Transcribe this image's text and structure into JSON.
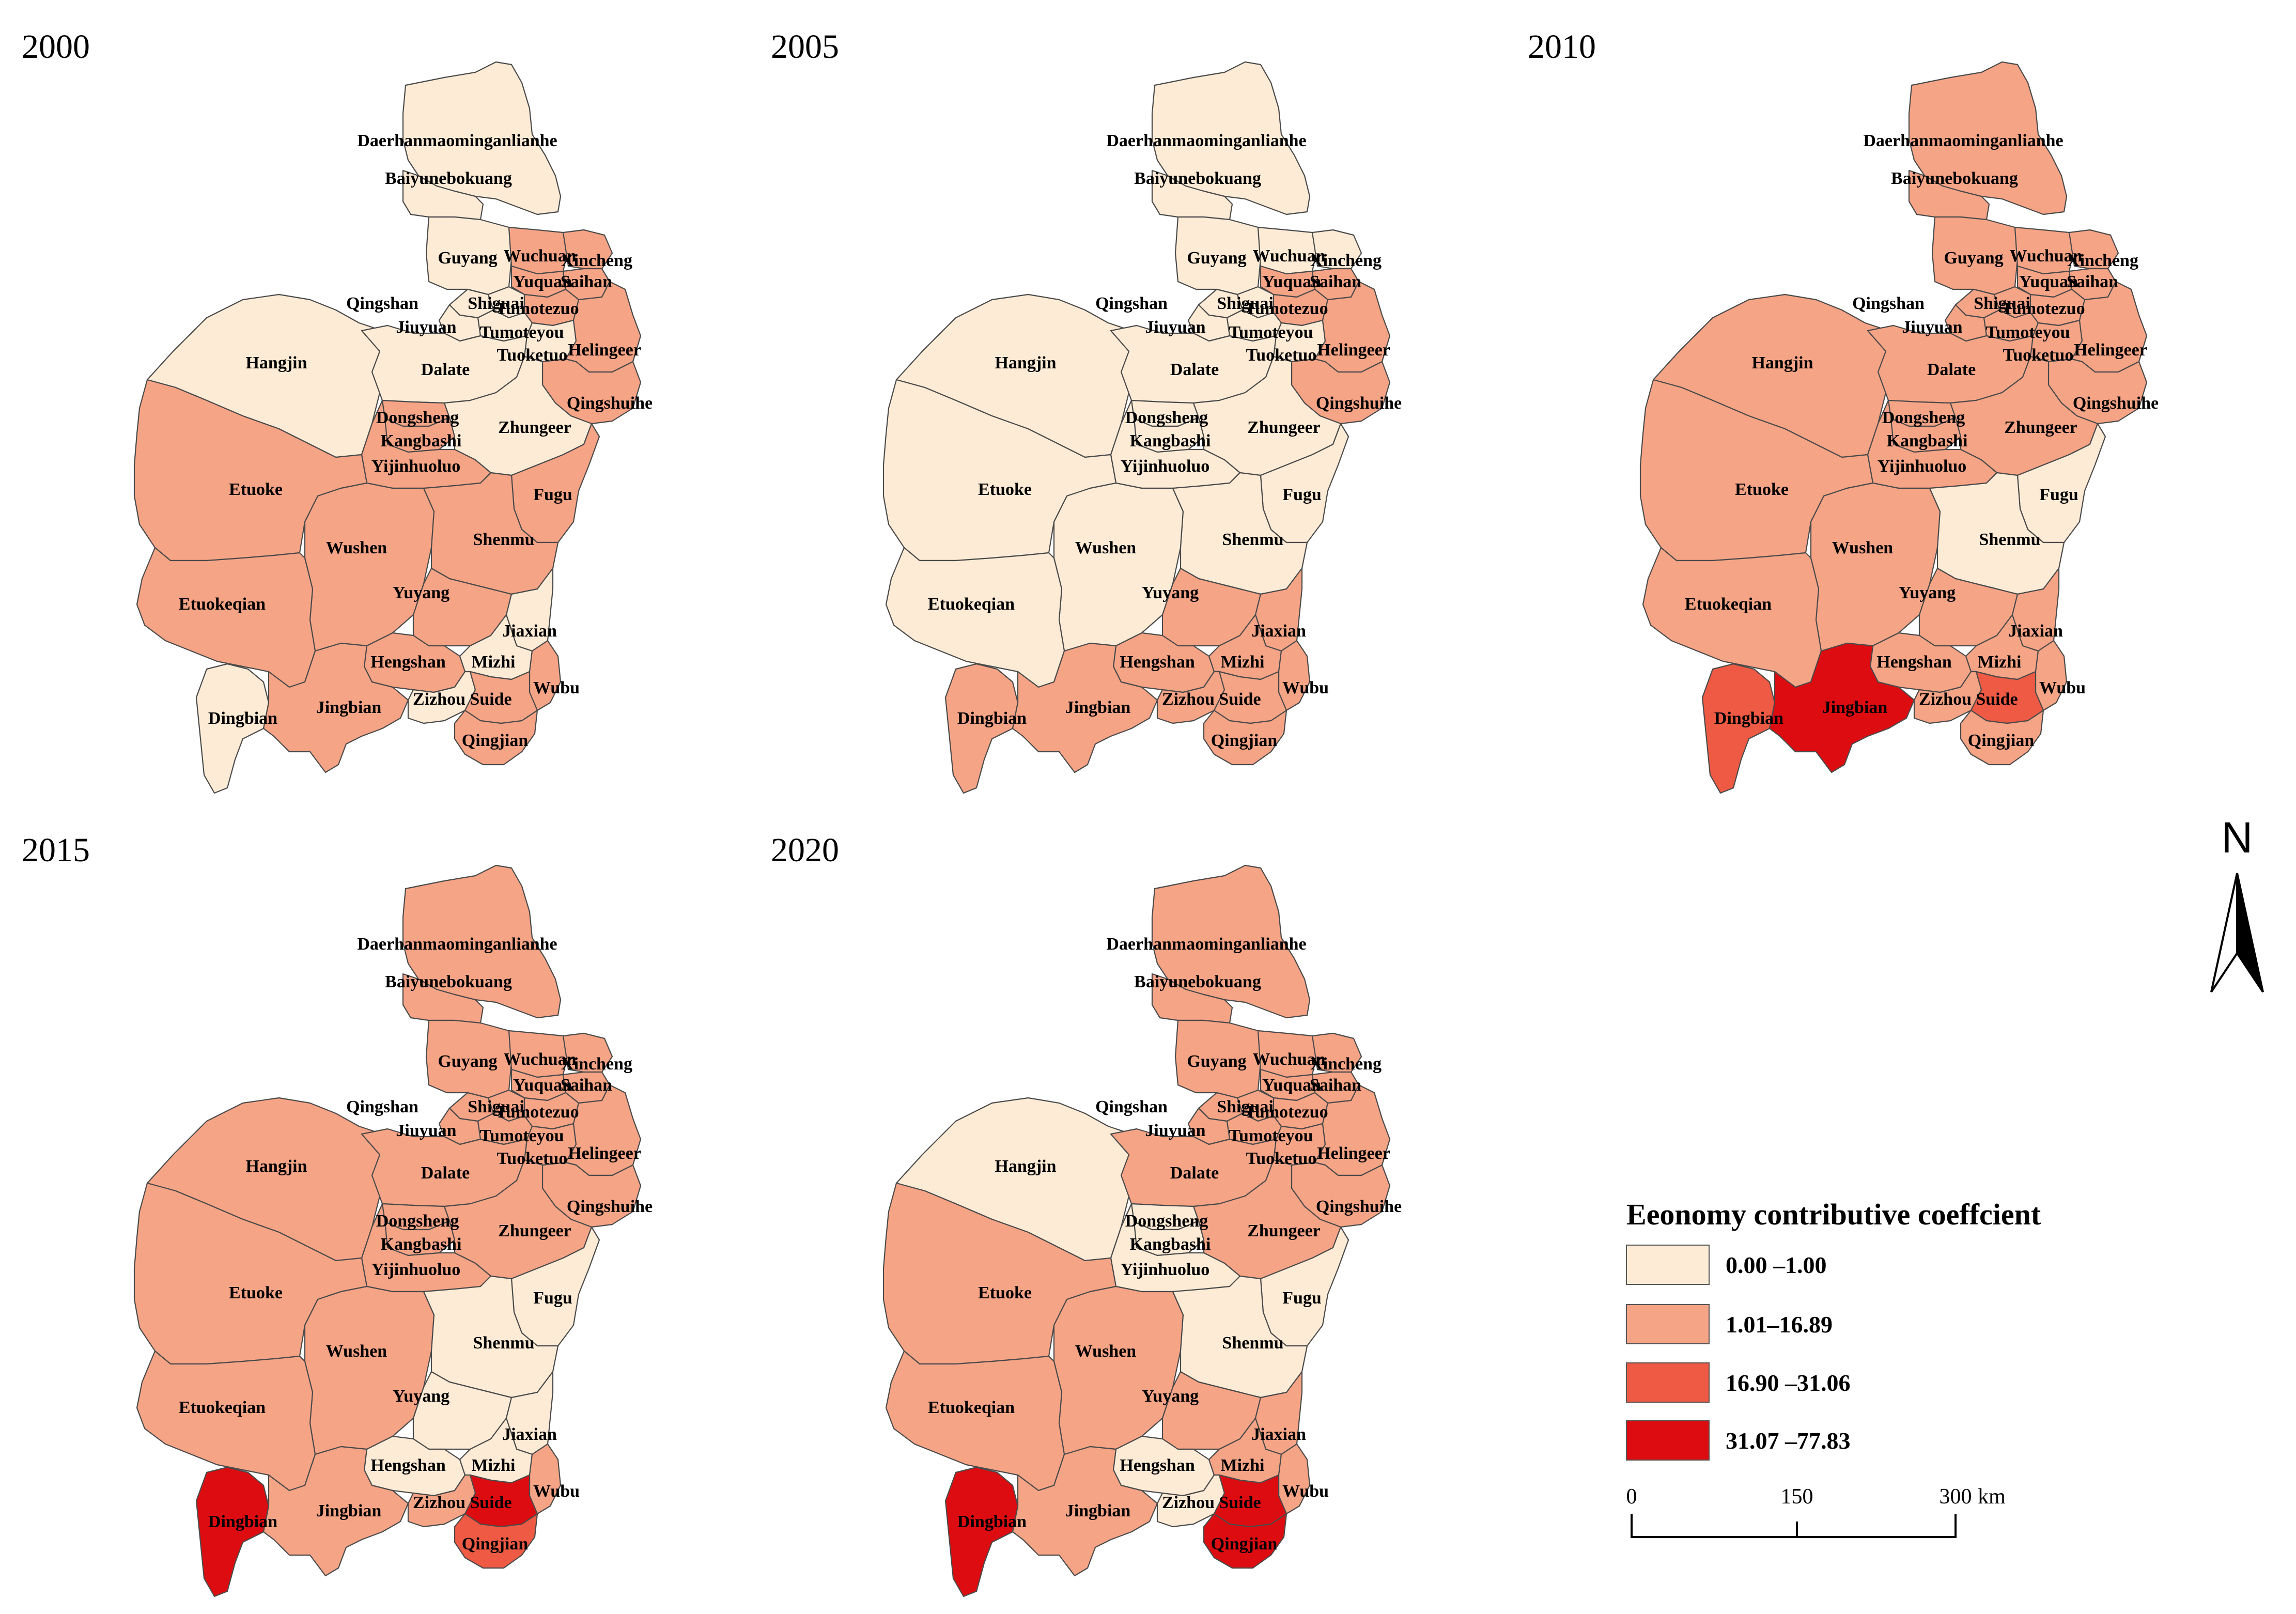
{
  "colors": {
    "c0": "#fdebd6",
    "c1": "#f6a486",
    "c2": "#ee5a43",
    "c3": "#dd0c10"
  },
  "panels": [
    {
      "year": "2000",
      "classes": {
        "Daerhanmaominganlianhe": "c0",
        "Baiyunebokuang": "c0",
        "Guyang": "c0",
        "Wuchuan": "c1",
        "Xincheng": "c1",
        "Yuquan": "c1",
        "Saihan": "c1",
        "Qingshan": "c0",
        "Shiguai": "c0",
        "Jiuyuan": "c0",
        "Tumotezuo": "c1",
        "Tumoteyou": "c0",
        "Tuoketuo": "c0",
        "Helingeer": "c1",
        "Hangjin": "c0",
        "Dalate": "c0",
        "Qingshuihe": "c1",
        "Dongsheng": "c1",
        "Kangbashi": "c1",
        "Zhungeer": "c0",
        "Yijinhuoluo": "c1",
        "Etuoke": "c1",
        "Fugu": "c1",
        "Wushen": "c1",
        "Shenmu": "c1",
        "Etuokeqian": "c1",
        "Yuyang": "c1",
        "Jiaxian": "c0",
        "Hengshan": "c1",
        "Mizhi": "c0",
        "Wubu": "c1",
        "Dingbian": "c0",
        "Jingbian": "c1",
        "Zizhou": "c0",
        "Suide": "c1",
        "Qingjian": "c1"
      }
    },
    {
      "year": "2005",
      "classes": {
        "Daerhanmaominganlianhe": "c0",
        "Baiyunebokuang": "c0",
        "Guyang": "c0",
        "Wuchuan": "c0",
        "Xincheng": "c0",
        "Yuquan": "c1",
        "Saihan": "c1",
        "Qingshan": "c0",
        "Shiguai": "c0",
        "Jiuyuan": "c0",
        "Tumotezuo": "c1",
        "Tumoteyou": "c0",
        "Tuoketuo": "c0",
        "Helingeer": "c1",
        "Hangjin": "c0",
        "Dalate": "c0",
        "Qingshuihe": "c1",
        "Dongsheng": "c0",
        "Kangbashi": "c0",
        "Zhungeer": "c0",
        "Yijinhuoluo": "c0",
        "Etuoke": "c0",
        "Fugu": "c0",
        "Wushen": "c0",
        "Shenmu": "c0",
        "Etuokeqian": "c0",
        "Yuyang": "c1",
        "Jiaxian": "c1",
        "Hengshan": "c1",
        "Mizhi": "c1",
        "Wubu": "c1",
        "Dingbian": "c1",
        "Jingbian": "c1",
        "Zizhou": "c1",
        "Suide": "c1",
        "Qingjian": "c1"
      }
    },
    {
      "year": "2010",
      "classes": {
        "Daerhanmaominganlianhe": "c1",
        "Baiyunebokuang": "c1",
        "Guyang": "c1",
        "Wuchuan": "c1",
        "Xincheng": "c1",
        "Yuquan": "c1",
        "Saihan": "c1",
        "Qingshan": "c1",
        "Shiguai": "c1",
        "Jiuyuan": "c1",
        "Tumotezuo": "c1",
        "Tumoteyou": "c1",
        "Tuoketuo": "c1",
        "Helingeer": "c1",
        "Hangjin": "c1",
        "Dalate": "c1",
        "Qingshuihe": "c1",
        "Dongsheng": "c1",
        "Kangbashi": "c1",
        "Zhungeer": "c1",
        "Yijinhuoluo": "c1",
        "Etuoke": "c1",
        "Fugu": "c0",
        "Wushen": "c1",
        "Shenmu": "c0",
        "Etuokeqian": "c1",
        "Yuyang": "c1",
        "Jiaxian": "c1",
        "Hengshan": "c1",
        "Mizhi": "c1",
        "Wubu": "c1",
        "Dingbian": "c2",
        "Jingbian": "c3",
        "Zizhou": "c1",
        "Suide": "c2",
        "Qingjian": "c1"
      }
    },
    {
      "year": "2015",
      "classes": {
        "Daerhanmaominganlianhe": "c1",
        "Baiyunebokuang": "c1",
        "Guyang": "c1",
        "Wuchuan": "c1",
        "Xincheng": "c1",
        "Yuquan": "c1",
        "Saihan": "c1",
        "Qingshan": "c1",
        "Shiguai": "c1",
        "Jiuyuan": "c1",
        "Tumotezuo": "c1",
        "Tumoteyou": "c1",
        "Tuoketuo": "c1",
        "Helingeer": "c1",
        "Hangjin": "c1",
        "Dalate": "c1",
        "Qingshuihe": "c1",
        "Dongsheng": "c1",
        "Kangbashi": "c1",
        "Zhungeer": "c1",
        "Yijinhuoluo": "c1",
        "Etuoke": "c1",
        "Fugu": "c0",
        "Wushen": "c1",
        "Shenmu": "c0",
        "Etuokeqian": "c1",
        "Yuyang": "c0",
        "Jiaxian": "c0",
        "Hengshan": "c0",
        "Mizhi": "c0",
        "Wubu": "c1",
        "Dingbian": "c3",
        "Jingbian": "c1",
        "Zizhou": "c1",
        "Suide": "c3",
        "Qingjian": "c2"
      }
    },
    {
      "year": "2020",
      "classes": {
        "Daerhanmaominganlianhe": "c1",
        "Baiyunebokuang": "c1",
        "Guyang": "c1",
        "Wuchuan": "c1",
        "Xincheng": "c1",
        "Yuquan": "c1",
        "Saihan": "c1",
        "Qingshan": "c1",
        "Shiguai": "c1",
        "Jiuyuan": "c1",
        "Tumotezuo": "c1",
        "Tumoteyou": "c1",
        "Tuoketuo": "c1",
        "Helingeer": "c1",
        "Hangjin": "c0",
        "Dalate": "c1",
        "Qingshuihe": "c1",
        "Dongsheng": "c0",
        "Kangbashi": "c0",
        "Zhungeer": "c1",
        "Yijinhuoluo": "c0",
        "Etuoke": "c1",
        "Fugu": "c0",
        "Wushen": "c1",
        "Shenmu": "c0",
        "Etuokeqian": "c1",
        "Yuyang": "c1",
        "Jiaxian": "c1",
        "Hengshan": "c0",
        "Mizhi": "c1",
        "Wubu": "c1",
        "Dingbian": "c3",
        "Jingbian": "c1",
        "Zizhou": "c0",
        "Suide": "c3",
        "Qingjian": "c3"
      }
    }
  ],
  "legend": {
    "title": "Eeonomy contributive coeffcient",
    "items": [
      {
        "label": "0.00 –1.00",
        "color": "#fdebd6"
      },
      {
        "label": "1.01–16.89",
        "color": "#f6a486"
      },
      {
        "label": "16.90 –31.06",
        "color": "#ee5a43"
      },
      {
        "label": "31.07 –77.83",
        "color": "#dd0c10"
      }
    ]
  },
  "scale_bar": {
    "ticks": [
      "0",
      "150",
      "300"
    ],
    "unit": "km"
  },
  "north_arrow": {
    "label": "N"
  }
}
